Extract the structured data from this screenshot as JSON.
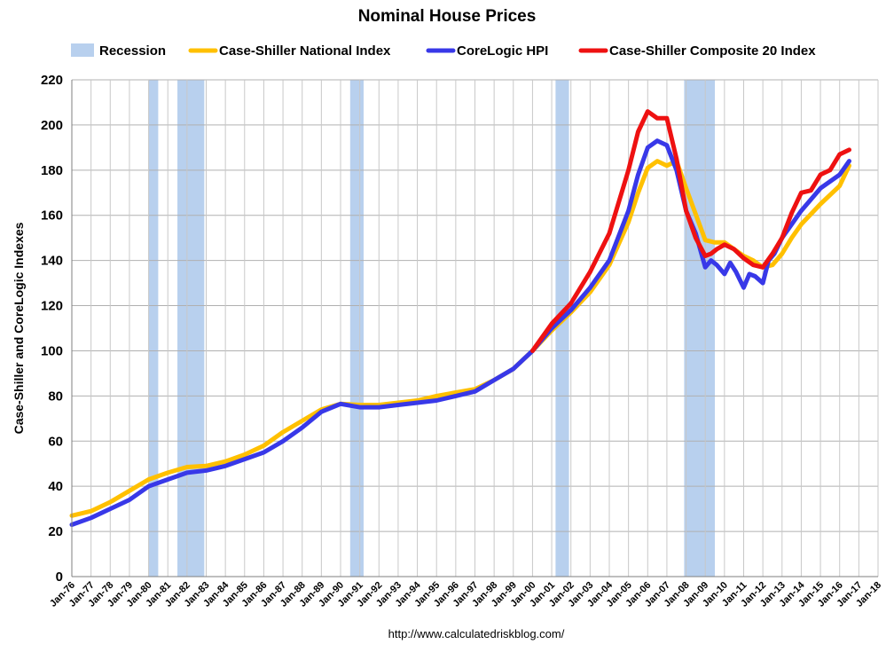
{
  "chart_data": {
    "type": "line",
    "title": "Nominal House Prices",
    "ylabel": "Case-Shiller and CoreLogic Indexes",
    "xlabel": "",
    "source": "http://www.calculatedriskblog.com/",
    "ylim": [
      0,
      220
    ],
    "yticks": [
      0,
      20,
      40,
      60,
      80,
      100,
      120,
      140,
      160,
      180,
      200,
      220
    ],
    "xlim": [
      1976,
      2018
    ],
    "xticks": [
      "Jan-76",
      "Jan-77",
      "Jan-78",
      "Jan-79",
      "Jan-80",
      "Jan-81",
      "Jan-82",
      "Jan-83",
      "Jan-84",
      "Jan-85",
      "Jan-86",
      "Jan-87",
      "Jan-88",
      "Jan-89",
      "Jan-90",
      "Jan-91",
      "Jan-92",
      "Jan-93",
      "Jan-94",
      "Jan-95",
      "Jan-96",
      "Jan-97",
      "Jan-98",
      "Jan-99",
      "Jan-00",
      "Jan-01",
      "Jan-02",
      "Jan-03",
      "Jan-04",
      "Jan-05",
      "Jan-06",
      "Jan-07",
      "Jan-08",
      "Jan-09",
      "Jan-10",
      "Jan-11",
      "Jan-12",
      "Jan-13",
      "Jan-14",
      "Jan-15",
      "Jan-16",
      "Jan-17",
      "Jan-18"
    ],
    "grid": true,
    "legend_position": "top",
    "recession_label": "Recession",
    "recession_color": "#b8d0ee",
    "recessions": [
      [
        1980.0,
        1980.5
      ],
      [
        1981.5,
        1982.9
      ],
      [
        1990.5,
        1991.2
      ],
      [
        2001.2,
        2001.9
      ],
      [
        2007.9,
        2009.5
      ]
    ],
    "series": [
      {
        "name": "Case-Shiller National Index",
        "color": "#ffc000",
        "x": [
          1976,
          1977,
          1978,
          1979,
          1980,
          1981,
          1982,
          1983,
          1984,
          1985,
          1986,
          1987,
          1988,
          1989,
          1990,
          1991,
          1992,
          1993,
          1994,
          1995,
          1996,
          1997,
          1998,
          1999,
          2000,
          2001,
          2002,
          2003,
          2004,
          2005,
          2005.5,
          2006,
          2006.5,
          2007,
          2007.5,
          2008,
          2009,
          2009.5,
          2010,
          2010.5,
          2011,
          2011.5,
          2012,
          2012.5,
          2013,
          2013.5,
          2014,
          2015,
          2016,
          2016.5
        ],
        "y": [
          27,
          29,
          33,
          38,
          43,
          46,
          48.5,
          49,
          51,
          54,
          58,
          64,
          69,
          74,
          76.5,
          76,
          76,
          77,
          78,
          80,
          81.5,
          83,
          87,
          92,
          100,
          109,
          117,
          126,
          138,
          157,
          170,
          181,
          184,
          182,
          184,
          172,
          149,
          148,
          148,
          145,
          142,
          140,
          137,
          138,
          143,
          150,
          156,
          165,
          173,
          182
        ]
      },
      {
        "name": "CoreLogic HPI",
        "color": "#3838e8",
        "x": [
          1976,
          1977,
          1978,
          1979,
          1980,
          1981,
          1982,
          1983,
          1984,
          1985,
          1986,
          1987,
          1988,
          1989,
          1990,
          1991,
          1992,
          1993,
          1994,
          1995,
          1996,
          1997,
          1998,
          1999,
          2000,
          2001,
          2002,
          2003,
          2004,
          2005,
          2005.5,
          2006,
          2006.5,
          2007,
          2007.5,
          2008,
          2008.5,
          2009,
          2009.3,
          2009.6,
          2010,
          2010.3,
          2010.6,
          2011,
          2011.3,
          2011.6,
          2012,
          2012.3,
          2012.6,
          2013,
          2013.5,
          2014,
          2015,
          2016,
          2016.5
        ],
        "y": [
          23,
          26,
          30,
          34,
          40,
          43,
          46,
          47,
          49,
          52,
          55,
          60,
          66,
          73,
          76.5,
          75,
          75,
          76,
          77,
          78,
          80,
          82,
          87,
          92,
          100,
          110,
          118,
          128,
          140,
          162,
          178,
          190,
          193,
          191,
          180,
          162,
          152,
          137,
          140,
          138,
          134,
          139,
          135,
          128,
          134,
          133,
          130,
          140,
          143,
          150,
          156,
          162,
          172,
          178,
          184
        ]
      },
      {
        "name": "Case-Shiller Composite 20 Index",
        "color": "#ee1111",
        "x": [
          2000,
          2001,
          2002,
          2003,
          2004,
          2005,
          2005.5,
          2006,
          2006.5,
          2007,
          2007.5,
          2008,
          2008.5,
          2009,
          2009.3,
          2009.6,
          2010,
          2010.5,
          2011,
          2011.5,
          2012,
          2012.5,
          2013,
          2013.5,
          2014,
          2014.5,
          2015,
          2015.5,
          2016,
          2016.5
        ],
        "y": [
          100,
          112,
          121,
          135,
          152,
          180,
          197,
          206,
          203,
          203,
          185,
          162,
          150,
          142,
          143,
          145,
          147,
          145,
          141,
          138,
          137,
          143,
          150,
          161,
          170,
          171,
          178,
          180,
          187,
          189
        ]
      }
    ]
  }
}
